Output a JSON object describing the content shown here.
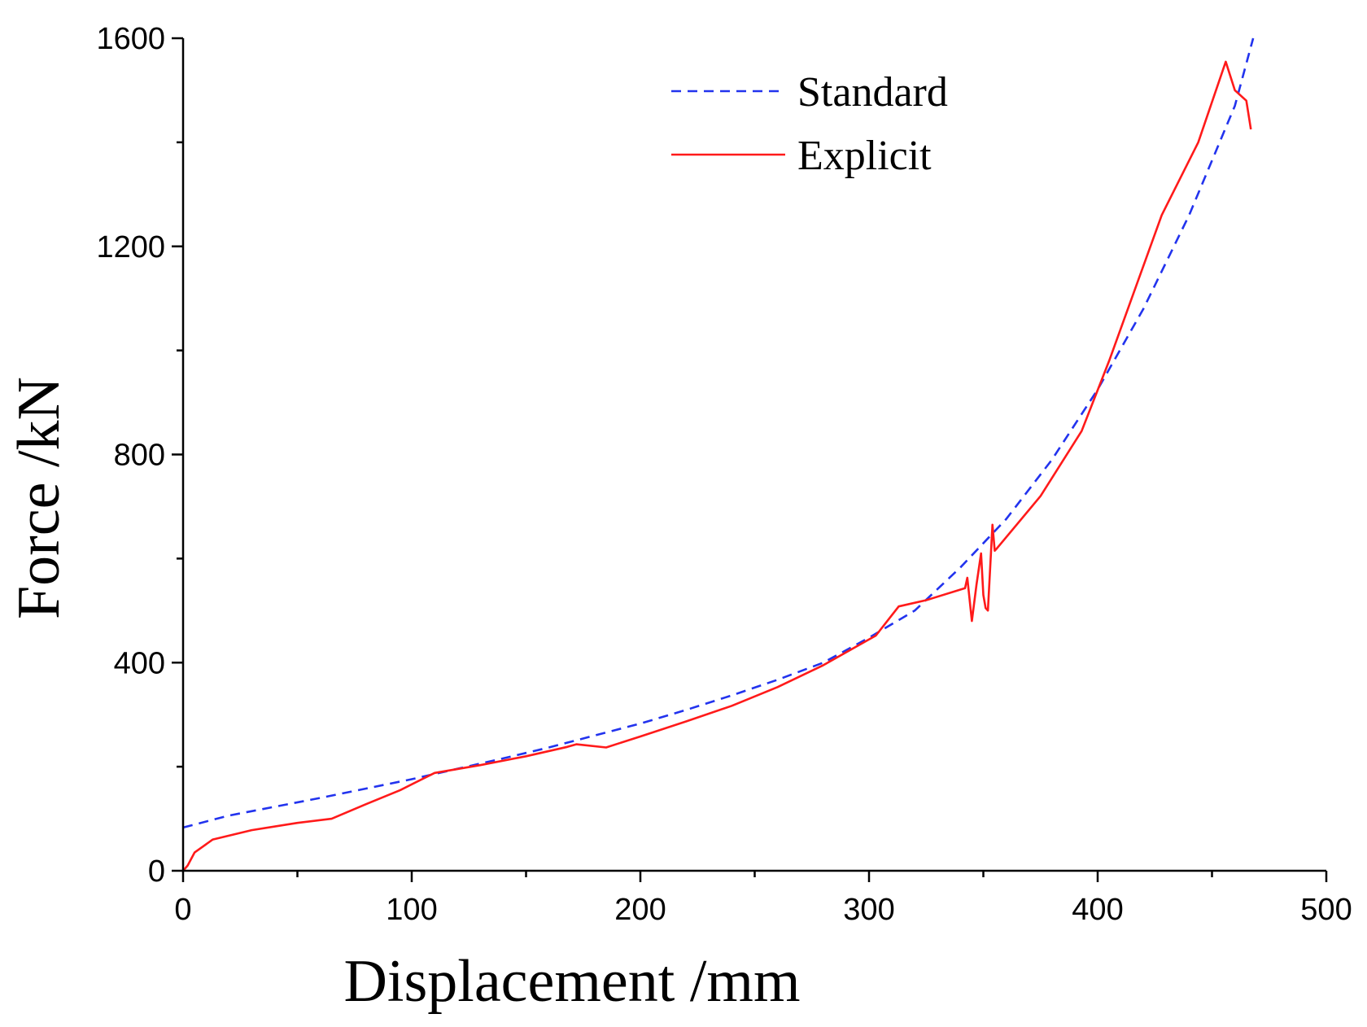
{
  "chart_data": {
    "type": "line",
    "title": "",
    "xlabel": "Displacement  /mm",
    "ylabel": "Force  /kN",
    "xlim": [
      0,
      500
    ],
    "ylim": [
      0,
      1600
    ],
    "xticks": [
      0,
      100,
      200,
      300,
      400,
      500
    ],
    "yticks": [
      0,
      400,
      800,
      1200,
      1600
    ],
    "x_minor_step": 50,
    "y_minor_step": 200,
    "grid": false,
    "legend_position": "top-right",
    "series": [
      {
        "name": "Standard",
        "color": "#2233ee",
        "style": "dashed",
        "x": [
          0,
          20,
          40,
          60,
          80,
          100,
          120,
          140,
          160,
          180,
          200,
          220,
          240,
          260,
          280,
          300,
          320,
          340,
          360,
          380,
          400,
          420,
          440,
          460,
          468
        ],
        "y": [
          83,
          106,
          123,
          140,
          158,
          176,
          196,
          216,
          237,
          260,
          283,
          309,
          337,
          367,
          400,
          448,
          500,
          583,
          676,
          790,
          925,
          1080,
          1260,
          1470,
          1600
        ]
      },
      {
        "name": "Explicit",
        "color": "#ff1a1a",
        "style": "solid",
        "x": [
          0,
          2,
          5,
          13,
          30,
          50,
          65,
          80,
          95,
          110,
          130,
          150,
          168,
          172,
          185,
          200,
          220,
          240,
          260,
          280,
          303,
          313,
          325,
          342,
          343,
          345,
          347,
          349,
          350,
          351,
          352,
          354,
          355,
          356,
          375,
          393,
          405,
          428,
          444,
          456,
          460,
          465,
          467
        ],
        "y": [
          0,
          10,
          35,
          60,
          78,
          92,
          100,
          128,
          155,
          188,
          203,
          220,
          238,
          243,
          237,
          258,
          287,
          317,
          353,
          395,
          452,
          508,
          520,
          543,
          563,
          480,
          550,
          610,
          530,
          505,
          500,
          665,
          615,
          620,
          720,
          845,
          980,
          1260,
          1400,
          1555,
          1500,
          1480,
          1425
        ]
      }
    ]
  }
}
